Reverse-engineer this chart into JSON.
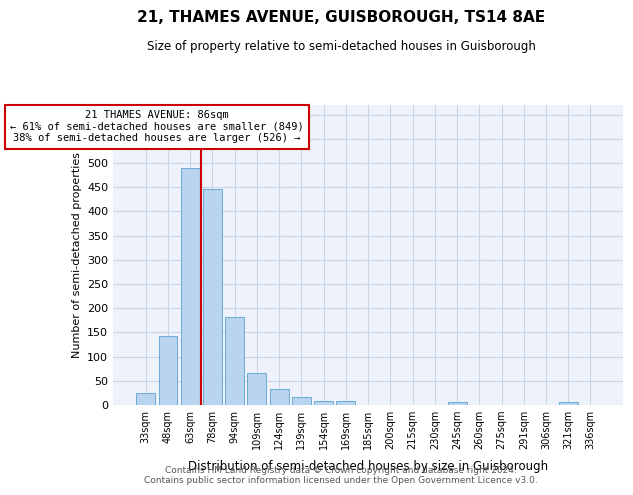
{
  "title": "21, THAMES AVENUE, GUISBOROUGH, TS14 8AE",
  "subtitle": "Size of property relative to semi-detached houses in Guisborough",
  "xlabel": "Distribution of semi-detached houses by size in Guisborough",
  "ylabel": "Number of semi-detached properties",
  "categories": [
    "33sqm",
    "48sqm",
    "63sqm",
    "78sqm",
    "94sqm",
    "109sqm",
    "124sqm",
    "139sqm",
    "154sqm",
    "169sqm",
    "185sqm",
    "200sqm",
    "215sqm",
    "230sqm",
    "245sqm",
    "260sqm",
    "275sqm",
    "291sqm",
    "306sqm",
    "321sqm",
    "336sqm"
  ],
  "values": [
    25,
    142,
    490,
    447,
    181,
    66,
    34,
    16,
    9,
    9,
    0,
    0,
    0,
    0,
    6,
    0,
    0,
    0,
    0,
    6,
    0
  ],
  "bar_color": "#b8d4ee",
  "bar_edge_color": "#6aaad4",
  "vline_color": "#cc0000",
  "annotation_text": "21 THAMES AVENUE: 86sqm\n← 61% of semi-detached houses are smaller (849)\n38% of semi-detached houses are larger (526) →",
  "annotation_box_color": "#ffffff",
  "annotation_box_edge_color": "#cc0000",
  "ylim": [
    0,
    620
  ],
  "yticks": [
    0,
    50,
    100,
    150,
    200,
    250,
    300,
    350,
    400,
    450,
    500,
    550,
    600
  ],
  "footer_line1": "Contains HM Land Registry data © Crown copyright and database right 2024.",
  "footer_line2": "Contains public sector information licensed under the Open Government Licence v3.0.",
  "bg_color": "#eef2fa",
  "grid_color": "#c8d4e8"
}
